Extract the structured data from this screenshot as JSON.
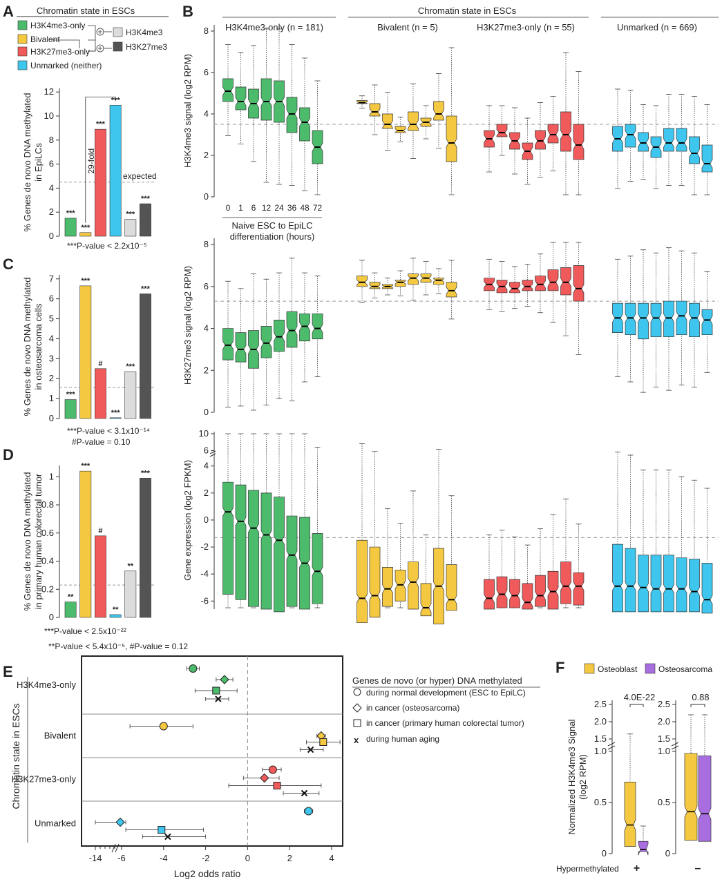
{
  "colors": {
    "h3k4me3_only": "#4cbb6c",
    "bivalent": "#f5c842",
    "h3k27me3_only": "#f05a5a",
    "unmarked": "#3fc6ee",
    "h3k4me3_all": "#dcdcdc",
    "h3k27me3_all": "#545454",
    "osteosarcoma": "#a86ee0"
  },
  "panel_labels": {
    "a": "A",
    "b": "B",
    "c": "C",
    "d": "D",
    "e": "E",
    "f": "F"
  },
  "panel_a": {
    "header": "Chromatin state in ESCs",
    "legend": [
      "H3K4me3-only",
      "Bivalent",
      "H3K27me3-only",
      "Unmarked (neither)",
      "H3K4me3",
      "H3K27me3"
    ],
    "fold_label": "29-fold",
    "expected_label": "expected",
    "footnote": "***P-value < 2.2x10⁻⁵"
  },
  "panel_c": {
    "footnote1": "***P-value < 3.1x10⁻¹⁴",
    "footnote2": "#P-value = 0.10"
  },
  "panel_d": {
    "footnote1": "***P-value < 2.5x10⁻²²",
    "footnote2": "**P-value < 5.4x10⁻⁵, #P-value = 0.12"
  },
  "panel_b": {
    "header": "Chromatin state in ESCs",
    "groups": [
      "H3K4me3-only (n = 181)",
      "Bivalent (n = 5)",
      "H3K27me3-only (n = 55)",
      "Unmarked (n = 669)"
    ],
    "timepoints": [
      "0",
      "1",
      "6",
      "12",
      "24",
      "36",
      "48",
      "72"
    ],
    "x_caption_1": "Naive ESC to EpiLC",
    "x_caption_2": "differentiation (hours)",
    "ylabels": [
      "H3K4me3 signal (log2 RPM)",
      "H3K27me3 signal (log2 RPM)",
      "Gene expression (log2 FPKM)"
    ]
  },
  "panel_e": {
    "ylabel": "Chromatin state in ESCs",
    "xlabel": "Log2 odds ratio",
    "legend_title": "Genes de novo (or hyper) DNA methylated",
    "legend": [
      "during normal development (ESC to EpiLC)",
      "in cancer (osteosarcoma)",
      "in cancer (primary human colorectal tumor)",
      "during human aging"
    ]
  },
  "panel_f": {
    "legend": [
      "Osteoblast",
      "Osteosarcoma"
    ],
    "ylabel_1": "Normalized H3K4me3 Signal",
    "ylabel_2": "(log2 RPM)",
    "xlabel": "Hypermethylated",
    "groups": [
      "+",
      "–"
    ],
    "pvalues": [
      "4.0E-22",
      "0.88"
    ]
  },
  "chart_data": [
    {
      "id": "A",
      "type": "bar",
      "ylabel": "% Genes de novo DNA methylated in EpiLCs",
      "categories": [
        "H3K4me3-only",
        "Bivalent",
        "H3K27me3-only",
        "Unmarked (neither)",
        "H3K4me3",
        "H3K27me3"
      ],
      "values": [
        1.5,
        0.3,
        8.9,
        10.9,
        1.4,
        2.7
      ],
      "significance": [
        "***",
        "***",
        "***",
        "***",
        "***",
        "***"
      ],
      "expected": 4.5,
      "yticks": [
        0,
        2,
        4,
        6,
        8,
        10,
        12
      ],
      "ylim": [
        0,
        12.3
      ]
    },
    {
      "id": "C",
      "type": "bar",
      "ylabel": "% Genes de novo DNA methylated in osteosarcoma cells",
      "categories": [
        "H3K4me3-only",
        "Bivalent",
        "H3K27me3-only",
        "Unmarked (neither)",
        "H3K4me3",
        "H3K27me3"
      ],
      "values": [
        0.95,
        6.65,
        2.5,
        0.04,
        2.35,
        6.25
      ],
      "significance": [
        "***",
        "***",
        "#",
        "***",
        "***",
        "***"
      ],
      "expected": 1.55,
      "yticks": [
        0,
        1,
        2,
        3,
        4,
        5,
        6,
        7
      ],
      "ylim": [
        0,
        7.2
      ]
    },
    {
      "id": "D",
      "type": "bar",
      "ylabel": "% Genes de novo DNA methylated in primary human colorectal tumor",
      "categories": [
        "H3K4me3-only",
        "Bivalent",
        "H3K27me3-only",
        "Unmarked (neither)",
        "H3K4me3",
        "H3K27me3"
      ],
      "values": [
        0.11,
        1.04,
        0.58,
        0.02,
        0.33,
        0.99
      ],
      "significance": [
        "**",
        "***",
        "#",
        "**",
        "**",
        "***"
      ],
      "expected": 0.23,
      "yticks": [
        0,
        0.2,
        0.4,
        0.6,
        0.8,
        1.0
      ],
      "ylim": [
        0,
        1.08
      ]
    },
    {
      "id": "B",
      "type": "box",
      "groups": [
        "H3K4me3-only",
        "Bivalent",
        "H3K27me3-only",
        "Unmarked"
      ],
      "timepoints_hours": [
        0,
        1,
        6,
        12,
        24,
        36,
        48,
        72
      ],
      "rows": [
        {
          "ylabel": "H3K4me3 signal (log2 RPM)",
          "yticks": [
            0,
            2,
            4,
            6,
            8
          ],
          "ylim": [
            0,
            8.3
          ],
          "dashed": 3.5,
          "boxes": {
            "H3K4me3-only": [
              [
                4.6,
                5.1,
                5.7
              ],
              [
                4.2,
                4.6,
                5.3
              ],
              [
                3.8,
                4.5,
                5.2
              ],
              [
                3.7,
                4.6,
                5.7
              ],
              [
                3.6,
                4.6,
                5.6
              ],
              [
                3.1,
                4.0,
                4.8
              ],
              [
                2.7,
                3.6,
                4.3
              ],
              [
                1.6,
                2.4,
                3.2
              ]
            ],
            "Bivalent": [
              [
                4.5,
                4.55,
                4.65
              ],
              [
                3.9,
                4.1,
                4.5
              ],
              [
                3.3,
                3.5,
                4.0
              ],
              [
                3.1,
                3.2,
                3.4
              ],
              [
                3.2,
                3.5,
                4.1
              ],
              [
                3.4,
                3.6,
                3.8
              ],
              [
                3.7,
                4.0,
                4.6
              ],
              [
                1.7,
                2.6,
                3.9
              ]
            ],
            "H3K27me3-only": [
              [
                2.4,
                2.8,
                3.2
              ],
              [
                2.9,
                3.1,
                3.5
              ],
              [
                2.3,
                2.7,
                3.1
              ],
              [
                1.8,
                2.2,
                2.6
              ],
              [
                2.3,
                2.7,
                3.2
              ],
              [
                2.6,
                3.0,
                3.5
              ],
              [
                2.2,
                3.0,
                4.1
              ],
              [
                1.8,
                2.5,
                3.5
              ]
            ],
            "Unmarked": [
              [
                2.2,
                2.8,
                3.4
              ],
              [
                2.4,
                3.0,
                3.5
              ],
              [
                2.2,
                2.6,
                3.1
              ],
              [
                1.9,
                2.4,
                2.9
              ],
              [
                2.2,
                2.6,
                3.3
              ],
              [
                2.2,
                2.6,
                3.3
              ],
              [
                1.6,
                2.1,
                2.9
              ],
              [
                1.2,
                1.6,
                2.5
              ]
            ]
          }
        },
        {
          "ylabel": "H3K27me3 signal (log2 RPM)",
          "yticks": [
            0,
            2,
            4,
            6,
            8
          ],
          "ylim": [
            0,
            8.3
          ],
          "dashed": 5.3,
          "boxes": {
            "H3K4me3-only": [
              [
                2.5,
                3.2,
                4.0
              ],
              [
                2.4,
                3.0,
                3.8
              ],
              [
                2.1,
                3.0,
                3.9
              ],
              [
                2.6,
                3.3,
                4.1
              ],
              [
                2.9,
                3.6,
                4.4
              ],
              [
                3.1,
                3.9,
                4.8
              ],
              [
                3.4,
                4.1,
                4.7
              ],
              [
                3.5,
                4.0,
                4.7
              ]
            ],
            "Bivalent": [
              [
                6.0,
                6.2,
                6.5
              ],
              [
                5.9,
                6.0,
                6.2
              ],
              [
                5.9,
                6.0,
                6.1
              ],
              [
                6.0,
                6.2,
                6.3
              ],
              [
                6.1,
                6.4,
                6.6
              ],
              [
                6.2,
                6.4,
                6.6
              ],
              [
                6.1,
                6.3,
                6.4
              ],
              [
                5.5,
                5.8,
                6.2
              ]
            ],
            "H3K27me3-only": [
              [
                5.8,
                6.1,
                6.4
              ],
              [
                5.7,
                6.0,
                6.3
              ],
              [
                5.7,
                5.9,
                6.2
              ],
              [
                5.8,
                6.0,
                6.3
              ],
              [
                5.8,
                6.1,
                6.5
              ],
              [
                5.8,
                6.2,
                6.8
              ],
              [
                5.6,
                6.2,
                6.9
              ],
              [
                5.3,
                5.9,
                7.0
              ]
            ],
            "Unmarked": [
              [
                3.8,
                4.5,
                5.2
              ],
              [
                3.7,
                4.5,
                5.2
              ],
              [
                3.5,
                4.5,
                5.2
              ],
              [
                3.6,
                4.5,
                5.2
              ],
              [
                3.6,
                4.5,
                5.3
              ],
              [
                3.7,
                4.6,
                5.3
              ],
              [
                3.6,
                4.5,
                5.2
              ],
              [
                3.7,
                4.4,
                4.9
              ]
            ]
          }
        },
        {
          "ylabel": "Gene expression (log2 FPKM)",
          "yticks": [
            -6,
            -4,
            -2,
            0,
            2,
            4,
            6,
            10
          ],
          "ylim": [
            -6.6,
            10.5
          ],
          "axis_break": [
            4.6,
            5.6
          ],
          "dashed": -1.3,
          "boxes": {
            "H3K4me3-only": [
              [
                -5.5,
                0.6,
                2.8
              ],
              [
                -5.9,
                -0.1,
                2.6
              ],
              [
                -6.4,
                -0.6,
                2.2
              ],
              [
                -6.6,
                -1.1,
                2.0
              ],
              [
                -6.8,
                -1.5,
                1.7
              ],
              [
                -6.4,
                -2.6,
                0.3
              ],
              [
                -6.6,
                -3.2,
                0.2
              ],
              [
                -6.2,
                -3.8,
                -1.0
              ]
            ],
            "Bivalent": [
              [
                -7.6,
                -5.8,
                -1.5
              ],
              [
                -7.2,
                -5.6,
                -2.0
              ],
              [
                -6.4,
                -5.1,
                -3.5
              ],
              [
                -6.0,
                -4.8,
                -3.7
              ],
              [
                -6.6,
                -4.6,
                -3.1
              ],
              [
                -7.1,
                -6.5,
                -4.7
              ],
              [
                -7.7,
                -4.9,
                -2.1
              ],
              [
                -6.7,
                -5.9,
                -3.3
              ]
            ],
            "H3K27me3-only": [
              [
                -6.6,
                -5.8,
                -4.4
              ],
              [
                -6.5,
                -5.5,
                -4.2
              ],
              [
                -6.5,
                -5.6,
                -4.4
              ],
              [
                -6.6,
                -6.1,
                -4.7
              ],
              [
                -6.4,
                -5.6,
                -4.1
              ],
              [
                -6.6,
                -5.3,
                -3.8
              ],
              [
                -6.2,
                -4.9,
                -3.1
              ],
              [
                -6.3,
                -4.9,
                -3.9
              ]
            ],
            "Unmarked": [
              [
                -6.8,
                -4.9,
                -1.8
              ],
              [
                -6.8,
                -4.9,
                -2.1
              ],
              [
                -6.8,
                -5.0,
                -2.6
              ],
              [
                -6.8,
                -5.1,
                -2.6
              ],
              [
                -6.8,
                -5.1,
                -2.6
              ],
              [
                -6.8,
                -5.1,
                -2.8
              ],
              [
                -6.8,
                -5.3,
                -2.9
              ],
              [
                -6.9,
                -5.9,
                -3.2
              ]
            ]
          }
        }
      ]
    },
    {
      "id": "E",
      "type": "scatter",
      "xlabel": "Log2 odds ratio",
      "xticks": [
        -14,
        -6,
        -4,
        -2,
        0,
        2,
        4
      ],
      "xlim": [
        -15,
        5
      ],
      "categories": [
        "H3K4me3-only",
        "Bivalent",
        "H3K27me3-only",
        "Unmarked"
      ],
      "series": [
        {
          "name": "during normal development (ESC to EpiLC)",
          "marker": "circle",
          "values": [
            [
              -2.6,
              -2.9,
              -2.3
            ],
            [
              -4.0,
              -5.6,
              -2.6
            ],
            [
              1.2,
              0.7,
              1.6
            ],
            [
              2.9,
              2.7,
              3.1
            ]
          ]
        },
        {
          "name": "in cancer (osteosarcoma)",
          "marker": "diamond",
          "values": [
            [
              -1.1,
              -1.5,
              -0.7
            ],
            [
              3.5,
              3.3,
              3.7
            ],
            [
              0.8,
              -0.2,
              1.5
            ],
            [
              -6.4,
              -14.0,
              -5.8
            ]
          ]
        },
        {
          "name": "in cancer (primary human colorectal tumor)",
          "marker": "square",
          "values": [
            [
              -1.5,
              -2.5,
              -0.5
            ],
            [
              3.6,
              2.8,
              4.4
            ],
            [
              1.4,
              -0.9,
              3.5
            ],
            [
              -4.1,
              -5.8,
              -2.1
            ]
          ]
        },
        {
          "name": "during human aging",
          "marker": "x",
          "values": [
            [
              -1.4,
              -2.0,
              -0.9
            ],
            [
              3.0,
              2.5,
              3.6
            ],
            [
              2.7,
              1.7,
              3.4
            ],
            [
              -3.8,
              -5.0,
              -2.0
            ]
          ]
        }
      ]
    },
    {
      "id": "F",
      "type": "box",
      "ylabel": "Normalized H3K4me3 Signal (log2 RPM)",
      "yticks": [
        0,
        0.5,
        1.0,
        1.5,
        2.0,
        2.5
      ],
      "categories": [
        "+",
        "–"
      ],
      "series": [
        {
          "name": "Osteoblast",
          "values": [
            [
              0.07,
              0.28,
              0.7
            ],
            [
              0.13,
              0.41,
              0.98
            ]
          ]
        },
        {
          "name": "Osteosarcoma",
          "values": [
            [
              0.02,
              0.04,
              0.12
            ],
            [
              0.12,
              0.39,
              1.01
            ]
          ]
        }
      ],
      "pvalues": [
        "4.0E-22",
        "0.88"
      ]
    }
  ]
}
